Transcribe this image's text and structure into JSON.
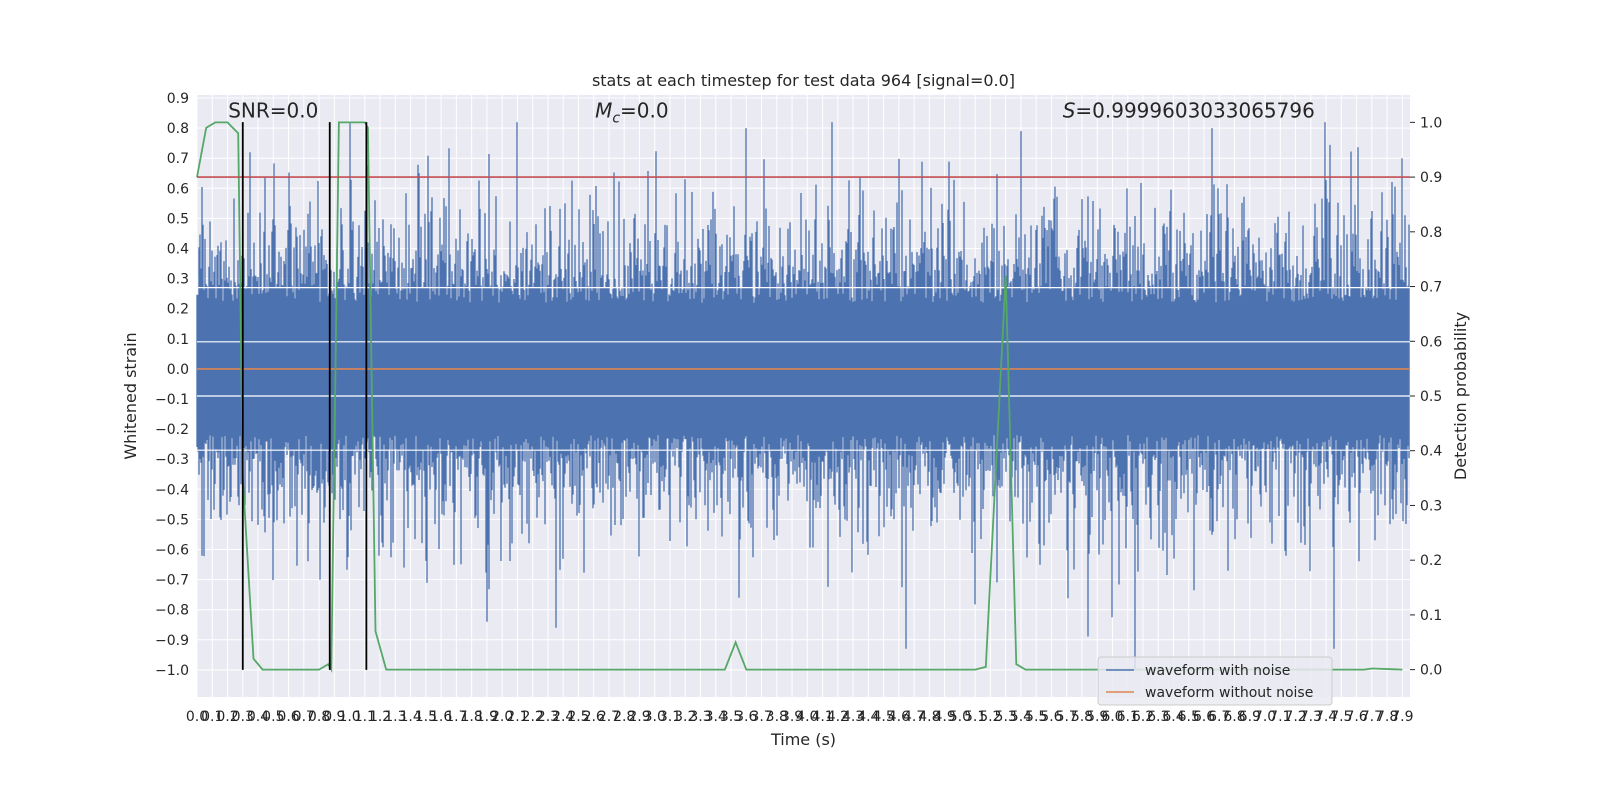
{
  "chart_data": {
    "type": "line",
    "title": "stats at each timestep for test data 964 [signal=0.0]",
    "xlabel": "Time (s)",
    "ylabel": "Whitened strain",
    "ylabel_right": "Detection probability",
    "xlim": [
      0,
      7.95
    ],
    "ylim": [
      -1.09,
      0.91
    ],
    "ylim_right": [
      -0.05,
      1.05
    ],
    "xticks": [
      0.0,
      0.1,
      0.2,
      0.3,
      0.4,
      0.5,
      0.6,
      0.7,
      0.8,
      0.9,
      1.0,
      1.1,
      1.2,
      1.3,
      1.4,
      1.5,
      1.6,
      1.7,
      1.8,
      1.9,
      2.0,
      2.1,
      2.2,
      2.3,
      2.4,
      2.5,
      2.6,
      2.7,
      2.8,
      2.9,
      3.0,
      3.1,
      3.2,
      3.3,
      3.4,
      3.5,
      3.6,
      3.7,
      3.8,
      3.9,
      4.0,
      4.1,
      4.2,
      4.3,
      4.4,
      4.5,
      4.6,
      4.7,
      4.8,
      4.9,
      5.0,
      5.1,
      5.2,
      5.3,
      5.4,
      5.5,
      5.6,
      5.7,
      5.8,
      5.9,
      6.0,
      6.1,
      6.2,
      6.3,
      6.4,
      6.5,
      6.6,
      6.7,
      6.8,
      6.9,
      7.0,
      7.1,
      7.2,
      7.3,
      7.4,
      7.5,
      7.6,
      7.7,
      7.8,
      7.9
    ],
    "xtick_labels": [
      "0.0",
      "0.1",
      "0.2",
      "0.3",
      "0.4",
      "0.5",
      "0.6",
      "0.7",
      "0.8",
      "0.9",
      "1.0",
      "1.1",
      "1.2",
      "1.3",
      "1.4",
      "1.5",
      "1.6",
      "1.7",
      "1.8",
      "1.9",
      "2.0",
      "2.1",
      "2.2",
      "2.3",
      "2.4",
      "2.5",
      "2.6",
      "2.7",
      "2.8",
      "2.9",
      "3.0",
      "3.1",
      "3.2",
      "3.3",
      "3.4",
      "3.5",
      "3.6",
      "3.7",
      "3.8",
      "3.9",
      "4.0",
      "4.1",
      "4.2",
      "4.3",
      "4.4",
      "4.5",
      "4.6",
      "4.7",
      "4.8",
      "4.9",
      "5.0",
      "5.1",
      "5.2",
      "5.3",
      "5.4",
      "5.5",
      "5.6",
      "5.7",
      "5.8",
      "5.9",
      "6.0",
      "6.1",
      "6.2",
      "6.3",
      "6.4",
      "6.5",
      "6.6",
      "6.7",
      "6.8",
      "6.9",
      "7.0",
      "7.1",
      "7.2",
      "7.3",
      "7.4",
      "7.5",
      "7.6",
      "7.7",
      "7.8",
      "7.9"
    ],
    "yticks": [
      0.9,
      0.8,
      0.7,
      0.6,
      0.5,
      0.4,
      0.3,
      0.2,
      0.1,
      0.0,
      -0.1,
      -0.2,
      -0.3,
      -0.4,
      -0.5,
      -0.6,
      -0.7,
      -0.8,
      -0.9,
      -1.0
    ],
    "ytick_labels": [
      "0.9",
      "0.8",
      "0.7",
      "0.6",
      "0.5",
      "0.4",
      "0.3",
      "0.2",
      "0.1",
      "0.0",
      "−0.1",
      "−0.2",
      "−0.3",
      "−0.4",
      "−0.5",
      "−0.6",
      "−0.7",
      "−0.8",
      "−0.9",
      "−1.0"
    ],
    "yticks_right": [
      1.0,
      0.9,
      0.8,
      0.7,
      0.6,
      0.5,
      0.4,
      0.3,
      0.2,
      0.1,
      0.0
    ],
    "ytick_labels_right": [
      "1.0",
      "0.9",
      "0.8",
      "0.7",
      "0.6",
      "0.5",
      "0.4",
      "0.3",
      "0.2",
      "0.1",
      "0.0"
    ],
    "grid": true,
    "legend_placement": "lower-right",
    "series": [
      {
        "name": "waveform with noise",
        "color": "#4c72b0",
        "axis": "left",
        "description_note": "",
        "noise_envelope": {
          "core_amplitude": 0.27,
          "typical_peak": 0.55,
          "max_peak": 0.82,
          "min_trough": -1.0,
          "t_start": 0.0,
          "t_end": 7.95,
          "sample_rate": 2048
        }
      },
      {
        "name": "waveform without noise",
        "color": "#dd8452",
        "axis": "left",
        "x": [
          0.0,
          7.95
        ],
        "y": [
          0.0,
          0.0
        ]
      },
      {
        "name": "",
        "color": "#55a868",
        "axis": "right",
        "x": [
          0.0,
          0.06,
          0.12,
          0.2,
          0.27,
          0.3,
          0.37,
          0.43,
          0.5,
          0.6,
          0.7,
          0.8,
          0.86,
          0.88,
          0.93,
          1.0,
          1.1,
          1.12,
          1.17,
          1.24,
          1.3,
          1.5,
          2.0,
          2.5,
          3.0,
          3.4,
          3.46,
          3.53,
          3.6,
          3.66,
          3.7,
          4.0,
          4.5,
          5.1,
          5.17,
          5.3,
          5.37,
          5.43,
          5.5,
          6.0,
          6.5,
          7.0,
          7.4,
          7.5,
          7.55,
          7.65,
          7.7,
          7.9
        ],
        "y": [
          0.9,
          0.99,
          1.0,
          1.0,
          0.98,
          0.35,
          0.02,
          0.0,
          0.0,
          0.0,
          0.0,
          0.0,
          0.01,
          0.0,
          1.0,
          1.0,
          1.0,
          0.99,
          0.07,
          0.0,
          0.0,
          0.0,
          0.0,
          0.0,
          0.0,
          0.0,
          0.0,
          0.05,
          0.0,
          0.0,
          0.0,
          0.0,
          0.0,
          0.0,
          0.005,
          0.72,
          0.01,
          0.0,
          0.0,
          0.0,
          0.0,
          0.0,
          0.0,
          0.0,
          0.0,
          0.0,
          0.002,
          0.0
        ]
      },
      {
        "name": "",
        "color": "#c44e52",
        "axis": "right",
        "x": [
          0.0,
          7.95
        ],
        "y": [
          0.9,
          0.9
        ]
      }
    ],
    "vlines": {
      "color": "#000000",
      "x": [
        0.3,
        0.87,
        1.11
      ],
      "y_range": [
        -1.0,
        0.82
      ]
    },
    "annotations": [
      {
        "text": "SNR=0.0",
        "x": 0.5,
        "y": 0.835
      },
      {
        "text_main": "M",
        "text_sub": "c",
        "text_rest": "=0.0",
        "x": 2.85,
        "y": 0.835
      },
      {
        "text_main": "S",
        "text_rest": "=0.9999603033065796",
        "x": 6.5,
        "y": 0.835
      }
    ]
  }
}
